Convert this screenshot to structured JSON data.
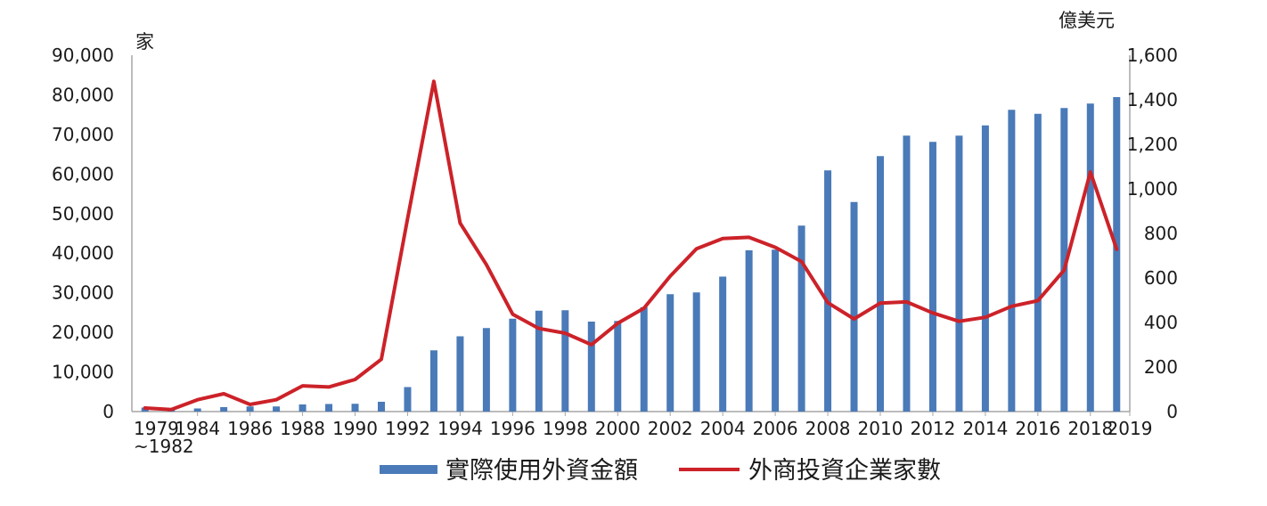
{
  "chart_data": {
    "type": "bar+line",
    "categories": [
      "1979\n~1982",
      "1983",
      "1984",
      "1985",
      "1986",
      "1987",
      "1988",
      "1989",
      "1990",
      "1991",
      "1992",
      "1993",
      "1994",
      "1995",
      "1996",
      "1997",
      "1998",
      "1999",
      "2000",
      "2001",
      "2002",
      "2003",
      "2004",
      "2005",
      "2006",
      "2007",
      "2008",
      "2009",
      "2010",
      "2011",
      "2012",
      "2013",
      "2014",
      "2015",
      "2016",
      "2017",
      "2018",
      "2019"
    ],
    "x_tick_labels": [
      {
        "index": 0,
        "label": "1979",
        "label2": "~1982"
      },
      {
        "index": 2,
        "label": "1984"
      },
      {
        "index": 4,
        "label": "1986"
      },
      {
        "index": 6,
        "label": "1988"
      },
      {
        "index": 8,
        "label": "1990"
      },
      {
        "index": 10,
        "label": "1992"
      },
      {
        "index": 12,
        "label": "1994"
      },
      {
        "index": 14,
        "label": "1996"
      },
      {
        "index": 16,
        "label": "1998"
      },
      {
        "index": 18,
        "label": "2000"
      },
      {
        "index": 20,
        "label": "2002"
      },
      {
        "index": 22,
        "label": "2004"
      },
      {
        "index": 24,
        "label": "2006"
      },
      {
        "index": 26,
        "label": "2008"
      },
      {
        "index": 28,
        "label": "2010"
      },
      {
        "index": 30,
        "label": "2012"
      },
      {
        "index": 32,
        "label": "2014"
      },
      {
        "index": 34,
        "label": "2016"
      },
      {
        "index": 36,
        "label": "2018"
      },
      {
        "index": 37,
        "label": "2019"
      }
    ],
    "series": [
      {
        "name": "實際使用外資金額",
        "kind": "bar",
        "axis": "right",
        "color": "#4a7ab8",
        "values": [
          18,
          9,
          14,
          20,
          23,
          23,
          32,
          34,
          35,
          44,
          110,
          275,
          338,
          375,
          417,
          453,
          455,
          404,
          407,
          469,
          527,
          535,
          606,
          724,
          727,
          835,
          1083,
          941,
          1147,
          1239,
          1211,
          1239,
          1285,
          1355,
          1337,
          1363,
          1383,
          1412
        ]
      },
      {
        "name": "外商投資企業家數",
        "kind": "line",
        "axis": "left",
        "color": "#cc2229",
        "values": [
          900,
          500,
          3000,
          4500,
          1800,
          3000,
          6500,
          6200,
          8100,
          13200,
          48800,
          83400,
          47600,
          37100,
          24600,
          21000,
          19800,
          16900,
          22300,
          26100,
          34200,
          41100,
          43700,
          44000,
          41500,
          37900,
          27500,
          23400,
          27400,
          27700,
          24900,
          22800,
          23800,
          26600,
          28000,
          35700,
          60500,
          41000
        ]
      }
    ],
    "left_axis": {
      "unit": "家",
      "ylim": [
        0,
        90000
      ],
      "ticks": [
        "0",
        "10,000",
        "20,000",
        "30,000",
        "40,000",
        "50,000",
        "60,000",
        "70,000",
        "80,000",
        "90,000"
      ]
    },
    "right_axis": {
      "unit": "億美元",
      "ylim": [
        0,
        1600
      ],
      "ticks": [
        "0",
        "200",
        "400",
        "600",
        "800",
        "1,000",
        "1,200",
        "1,400",
        "1,600"
      ]
    },
    "legend": {
      "placement": "bottom-center",
      "items": [
        {
          "label": "實際使用外資金額",
          "color": "#4a7ab8",
          "kind": "bar"
        },
        {
          "label": "外商投資企業家數",
          "color": "#cc2229",
          "kind": "line"
        }
      ]
    },
    "grid": false
  }
}
